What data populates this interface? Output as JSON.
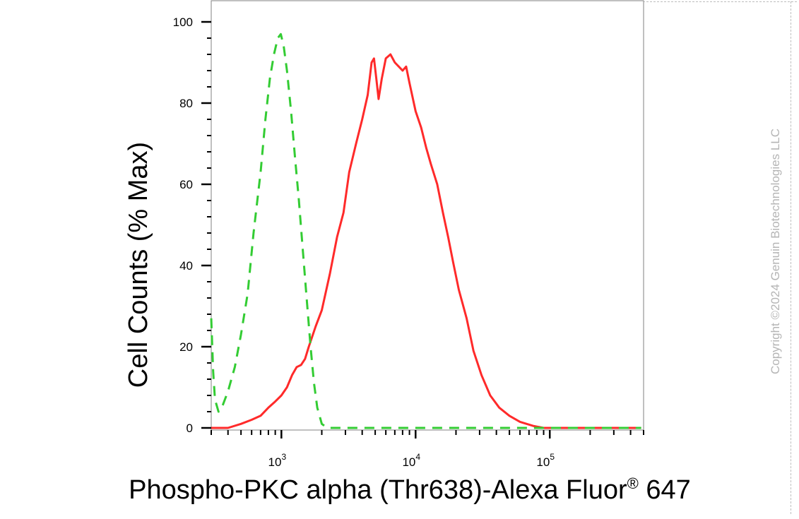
{
  "chart_data": {
    "type": "line",
    "xlabel": "Phospho-PKC alpha (Thr638)-Alexa Fluor",
    "xlabel_superscript": "®",
    "xlabel_suffix": " 647",
    "ylabel": "Cell Counts (% Max)",
    "x_scale": "log",
    "xlim": [
      300,
      500000
    ],
    "ylim": [
      0,
      100
    ],
    "y_ticks": [
      0,
      20,
      40,
      60,
      80,
      100
    ],
    "y_tick_labels": [
      "0",
      "20",
      "40",
      "60",
      "80",
      "100"
    ],
    "x_ticks": [
      {
        "value": 1000,
        "base": "10",
        "exp": "3"
      },
      {
        "value": 10000,
        "base": "10",
        "exp": "4"
      },
      {
        "value": 100000,
        "base": "10",
        "exp": "5"
      }
    ],
    "grid": false,
    "legend": "none",
    "watermark": "Copyright ©2024 Genuin Biotechnologies LLC",
    "series": [
      {
        "color": "#ff2a2a",
        "style": "solid",
        "points": [
          [
            300,
            0
          ],
          [
            400,
            0
          ],
          [
            500,
            1
          ],
          [
            600,
            2
          ],
          [
            700,
            3
          ],
          [
            800,
            5
          ],
          [
            900,
            6.5
          ],
          [
            1000,
            8
          ],
          [
            1100,
            10
          ],
          [
            1200,
            13
          ],
          [
            1300,
            15
          ],
          [
            1400,
            15.5
          ],
          [
            1500,
            17
          ],
          [
            1600,
            20
          ],
          [
            1800,
            25
          ],
          [
            2000,
            29
          ],
          [
            2300,
            38
          ],
          [
            2600,
            47
          ],
          [
            2900,
            53
          ],
          [
            3200,
            63
          ],
          [
            3600,
            70
          ],
          [
            4000,
            76
          ],
          [
            4400,
            82
          ],
          [
            4700,
            90
          ],
          [
            4900,
            91
          ],
          [
            5100,
            86
          ],
          [
            5300,
            81
          ],
          [
            5600,
            86
          ],
          [
            6000,
            91
          ],
          [
            6500,
            92
          ],
          [
            7000,
            90
          ],
          [
            7500,
            89
          ],
          [
            8000,
            88
          ],
          [
            8500,
            89
          ],
          [
            9000,
            85
          ],
          [
            10000,
            78
          ],
          [
            11000,
            74
          ],
          [
            12000,
            69
          ],
          [
            13000,
            65
          ],
          [
            14500,
            60
          ],
          [
            16000,
            53
          ],
          [
            17500,
            47
          ],
          [
            19000,
            41
          ],
          [
            21000,
            34
          ],
          [
            24000,
            27
          ],
          [
            27000,
            19
          ],
          [
            31000,
            13
          ],
          [
            36000,
            8
          ],
          [
            42000,
            5
          ],
          [
            50000,
            3
          ],
          [
            60000,
            1.5
          ],
          [
            75000,
            0.5
          ],
          [
            90000,
            0
          ],
          [
            150000,
            0
          ],
          [
            300000,
            0
          ],
          [
            480000,
            0
          ]
        ]
      },
      {
        "color": "#33cc33",
        "style": "dashed",
        "points": [
          [
            300,
            27
          ],
          [
            310,
            14
          ],
          [
            320,
            7
          ],
          [
            340,
            4
          ],
          [
            360,
            5
          ],
          [
            400,
            9
          ],
          [
            450,
            15
          ],
          [
            500,
            23
          ],
          [
            560,
            33
          ],
          [
            620,
            48
          ],
          [
            700,
            63
          ],
          [
            760,
            76
          ],
          [
            820,
            86
          ],
          [
            880,
            92
          ],
          [
            940,
            96
          ],
          [
            990,
            97
          ],
          [
            1040,
            94
          ],
          [
            1100,
            88
          ],
          [
            1180,
            78
          ],
          [
            1260,
            67
          ],
          [
            1350,
            56
          ],
          [
            1450,
            43
          ],
          [
            1550,
            31
          ],
          [
            1650,
            20
          ],
          [
            1750,
            11
          ],
          [
            1850,
            5
          ],
          [
            2000,
            1
          ],
          [
            2200,
            0
          ],
          [
            3000,
            0
          ],
          [
            10000,
            0
          ],
          [
            100000,
            0
          ],
          [
            480000,
            0
          ]
        ]
      }
    ]
  }
}
